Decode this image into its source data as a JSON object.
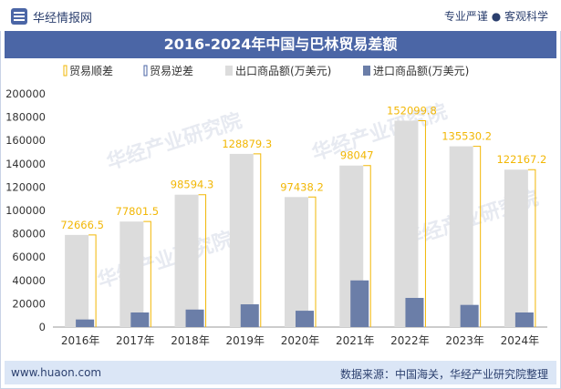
{
  "header": {
    "logo_text": "华经情报网",
    "tagline": "专业严谨 ● 客观科学"
  },
  "footer": {
    "website": "www.huaon.com",
    "source": "数据来源：中国海关，华经产业研究院整理"
  },
  "colors": {
    "brand": "#4b66a6",
    "export_bar": "#dcdcdc",
    "import_bar": "#6b7ea8",
    "surplus": "#f2b705",
    "deficit": "#4b66a6"
  },
  "chart_data": {
    "type": "bar",
    "title": "2016-2024年中国与巴林贸易差额",
    "categories": [
      "2016年",
      "2017年",
      "2018年",
      "2019年",
      "2020年",
      "2021年",
      "2022年",
      "2023年",
      "2024年"
    ],
    "series": [
      {
        "name": "出口商品额(万美元)",
        "values": [
          79000,
          90500,
          113500,
          148500,
          111500,
          138500,
          177000,
          155000,
          135000
        ]
      },
      {
        "name": "进口商品额(万美元)",
        "values": [
          6500,
          12500,
          15000,
          19500,
          14000,
          40000,
          25000,
          19000,
          12500
        ]
      },
      {
        "name": "贸易顺差",
        "values": [
          72666.5,
          77801.5,
          98594.3,
          128879.3,
          97438.2,
          98047,
          152099.8,
          135530.2,
          122167.2
        ]
      }
    ],
    "legend": [
      "贸易顺差",
      "贸易逆差",
      "出口商品额(万美元)",
      "进口商品额(万美元)"
    ],
    "data_labels": [
      "72666.5",
      "77801.5",
      "98594.3",
      "128879.3",
      "97438.2",
      "98047",
      "152099.8",
      "135530.2",
      "122167.2"
    ],
    "yticks": [
      "0",
      "20000",
      "40000",
      "60000",
      "80000",
      "100000",
      "120000",
      "140000",
      "160000",
      "180000",
      "200000"
    ],
    "ylim": [
      0,
      200000
    ],
    "legend_position": "top",
    "watermark": "华经产业研究院"
  }
}
